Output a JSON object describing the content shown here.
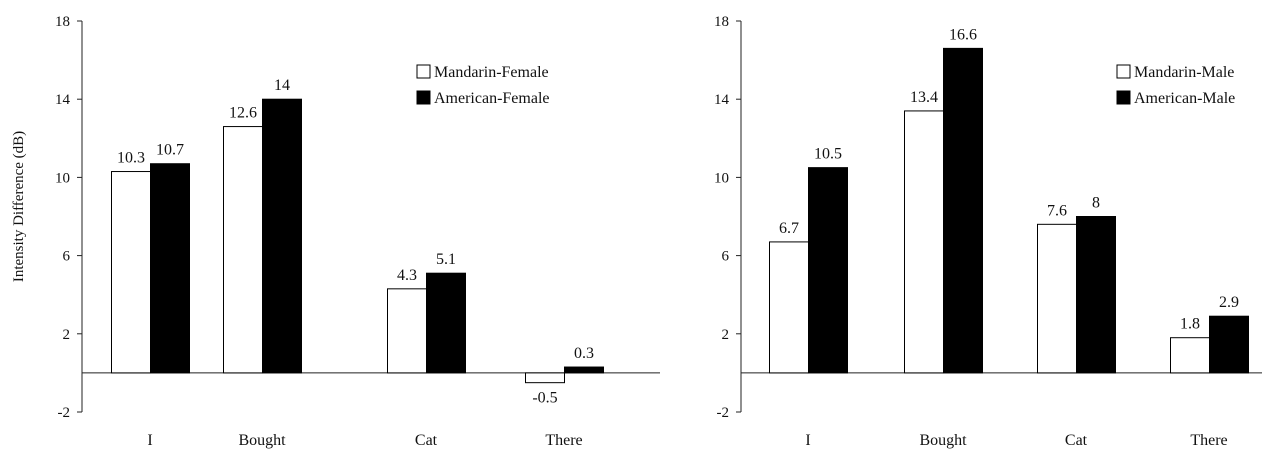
{
  "chart_data": [
    {
      "type": "bar",
      "title": "",
      "xlabel": "",
      "ylabel": "Intensity Difference (dB)",
      "ylim": [
        -2,
        18
      ],
      "yticks": [
        -2,
        2,
        6,
        10,
        14,
        18
      ],
      "categories": [
        "I",
        "Bought",
        "Cat",
        "There"
      ],
      "series": [
        {
          "name": "Mandarin-Female",
          "values": [
            10.3,
            12.6,
            4.3,
            -0.5
          ],
          "labels": [
            "10.3",
            "12.6",
            "4.3",
            "-0.5"
          ],
          "color": "#ffffff"
        },
        {
          "name": "American-Female",
          "values": [
            10.7,
            14,
            5.1,
            0.3
          ],
          "labels": [
            "10.7",
            "14",
            "5.1",
            "0.3"
          ],
          "color": "#000000"
        }
      ],
      "legend": "top-right",
      "grid": false
    },
    {
      "type": "bar",
      "title": "",
      "xlabel": "",
      "ylabel": "",
      "ylim": [
        -2,
        18
      ],
      "yticks": [
        -2,
        2,
        6,
        10,
        14,
        18
      ],
      "categories": [
        "I",
        "Bought",
        "Cat",
        "There"
      ],
      "series": [
        {
          "name": "Mandarin-Male",
          "values": [
            6.7,
            13.4,
            7.6,
            1.8
          ],
          "labels": [
            "6.7",
            "13.4",
            "7.6",
            "1.8"
          ],
          "color": "#ffffff"
        },
        {
          "name": "American-Male",
          "values": [
            10.5,
            16.6,
            8,
            2.9
          ],
          "labels": [
            "10.5",
            "16.6",
            "8",
            "2.9"
          ],
          "color": "#000000"
        }
      ],
      "legend": "top-right",
      "grid": false
    }
  ]
}
